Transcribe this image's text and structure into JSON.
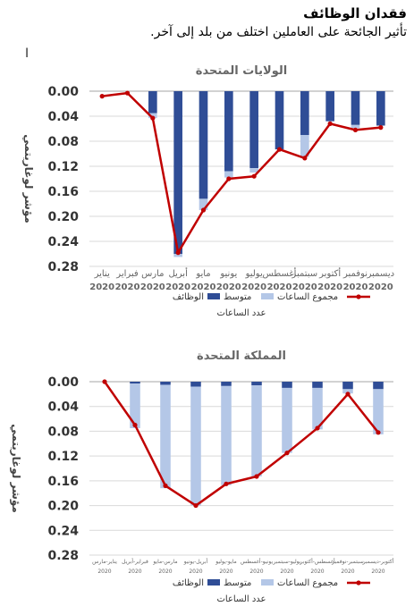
{
  "header": {
    "title": "فقدان الوظائف",
    "subtitle": "تأثير الجائحة على العاملين اختلف من بلد إلى آخر."
  },
  "cursor_glyph": "I",
  "colors": {
    "dark_blue": "#2f4d96",
    "light_blue": "#b4c7e7",
    "red": "#c00000",
    "grid": "#d9d9d9"
  },
  "chart_data": [
    {
      "type": "bar",
      "title": "الولايات المتحدة",
      "ylabel": "مؤشر لوغاريتمي",
      "footer": "عدد الساعات",
      "ylim": [
        0,
        0.28
      ],
      "yticks": [
        "0.00",
        "0.04",
        "0.08",
        "0.12",
        "0.16",
        "0.20",
        "0.24",
        "0.28"
      ],
      "categories": [
        "يناير 2020",
        "فبراير 2020",
        "مارس 2020",
        "أبريل 2020",
        "مايو 2020",
        "يونيو 2020",
        "يوليو 2020",
        "أغسطس 2020",
        "سبتمبر 2020",
        "أكتوبر 2020",
        "نوفمبر 2020",
        "ديسمبر 2020"
      ],
      "category_labels": [
        {
          "month": "يناير",
          "year": "2020"
        },
        {
          "month": "فبراير",
          "year": "2020"
        },
        {
          "month": "مارس",
          "year": "2020"
        },
        {
          "month": "أبريل",
          "year": "2020"
        },
        {
          "month": "مايو",
          "year": "2020"
        },
        {
          "month": "يونيو",
          "year": "2020"
        },
        {
          "month": "يوليو",
          "year": "2020"
        },
        {
          "month": "أغسطس",
          "year": "2020"
        },
        {
          "month": "سبتمبر",
          "year": "2020"
        },
        {
          "month": "أكتوبر",
          "year": "2020"
        },
        {
          "month": "نوفمبر",
          "year": "2020"
        },
        {
          "month": "ديسمبر",
          "year": "2020"
        }
      ],
      "series": [
        {
          "name": "الوظائف",
          "kind": "bar",
          "color": "#2f4d96",
          "values": [
            0.0,
            0.0,
            0.035,
            0.26,
            0.172,
            0.128,
            0.123,
            0.093,
            0.07,
            0.048,
            0.054,
            0.055
          ]
        },
        {
          "name": "متوسط",
          "kind": "bar",
          "color": "#b4c7e7",
          "values": [
            0.0,
            0.0,
            0.008,
            0.005,
            0.018,
            0.01,
            0.007,
            0.0,
            0.035,
            0.0,
            0.005,
            0.0
          ]
        },
        {
          "name": "مجموع الساعات",
          "kind": "line",
          "color": "#c00000",
          "values": [
            0.008,
            0.003,
            0.043,
            0.258,
            0.19,
            0.14,
            0.136,
            0.093,
            0.107,
            0.052,
            0.062,
            0.058
          ]
        }
      ]
    },
    {
      "type": "bar",
      "title": "المملكة المتحدة",
      "ylabel": "مؤشر لوغاريتمي",
      "footer": "عدد الساعات",
      "ylim": [
        0,
        0.28
      ],
      "yticks": [
        "0.00",
        "0.04",
        "0.08",
        "0.12",
        "0.16",
        "0.20",
        "0.24",
        "0.28"
      ],
      "categories": [
        "يناير-مارس 2020",
        "فبراير-أبريل 2020",
        "مارس-مايو 2020",
        "أبريل-يونيو 2020",
        "مايو-يوليو 2020",
        "يونيو-أغسطس 2020",
        "يوليو-سبتمبر 2020",
        "أغسطس-أكتوبر 2020",
        "سبتمبر-نوفمبر 2020",
        "أكتوبر-ديسمبر 2020"
      ],
      "category_labels": [
        {
          "month": "يناير-مارس",
          "year": "2020"
        },
        {
          "month": "فبراير-أبريل",
          "year": "2020"
        },
        {
          "month": "مارس-مايو",
          "year": "2020"
        },
        {
          "month": "أبريل-يونيو",
          "year": "2020"
        },
        {
          "month": "مايو-يوليو",
          "year": "2020"
        },
        {
          "month": "يونيو-أغسطس",
          "year": "2020"
        },
        {
          "month": "يوليو-سبتمبر",
          "year": "2020"
        },
        {
          "month": "أغسطس-أكتوبر",
          "year": "2020"
        },
        {
          "month": "سبتمبر-نوفمبر",
          "year": "2020"
        },
        {
          "month": "أكتوبر-ديسمبر",
          "year": "2020"
        }
      ],
      "series": [
        {
          "name": "الوظائف",
          "kind": "bar",
          "color": "#2f4d96",
          "values": [
            0.0,
            0.003,
            0.005,
            0.008,
            0.007,
            0.006,
            0.01,
            0.01,
            0.012,
            0.012
          ]
        },
        {
          "name": "متوسط",
          "kind": "bar",
          "color": "#b4c7e7",
          "values": [
            0.0,
            0.072,
            0.167,
            0.192,
            0.16,
            0.147,
            0.105,
            0.067,
            0.007,
            0.073
          ]
        },
        {
          "name": "مجموع الساعات",
          "kind": "line",
          "color": "#c00000",
          "values": [
            0.0,
            0.07,
            0.168,
            0.2,
            0.165,
            0.153,
            0.115,
            0.075,
            0.02,
            0.082
          ]
        }
      ]
    }
  ]
}
